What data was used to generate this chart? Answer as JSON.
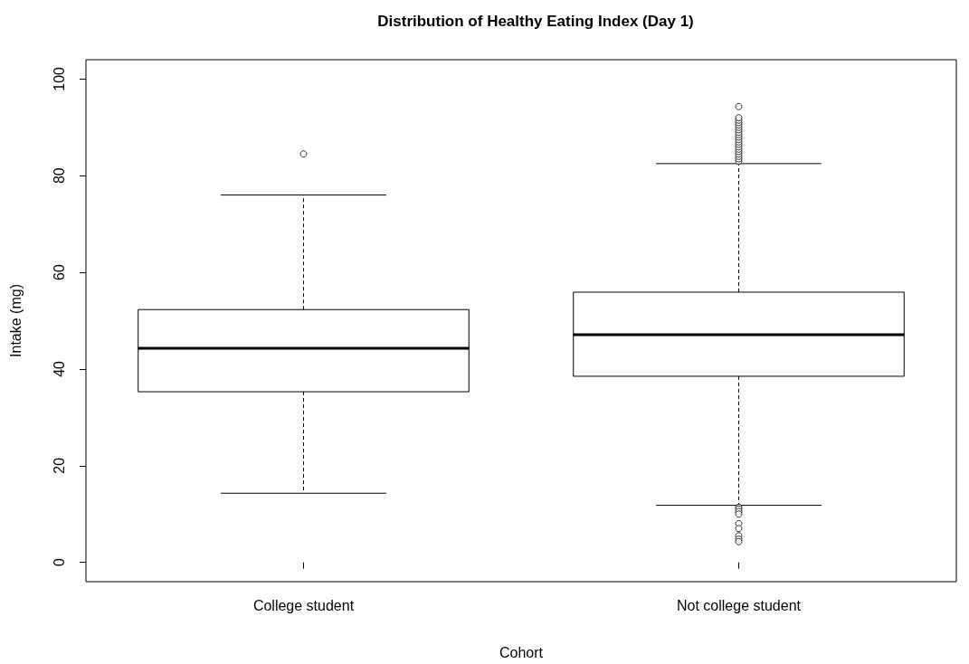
{
  "chart_data": {
    "type": "box",
    "title": "Distribution of Healthy Eating Index (Day 1)",
    "xlabel": "Cohort",
    "ylabel": "Intake (mg)",
    "categories": [
      "College student",
      "Not college student"
    ],
    "boxes": [
      {
        "low": 14.3,
        "q1": 35.3,
        "median": 44.3,
        "q3": 52.3,
        "high": 76.0,
        "outliers": [
          84.5
        ]
      },
      {
        "low": 11.8,
        "q1": 38.5,
        "median": 47.1,
        "q3": 55.9,
        "high": 82.5,
        "outliers": [
          83.0,
          83.5,
          84.0,
          84.5,
          85.0,
          85.5,
          86.0,
          86.5,
          87.0,
          87.5,
          88.0,
          88.5,
          89.0,
          89.5,
          90.0,
          90.5,
          91.0,
          91.5,
          92.0,
          94.3,
          11.4,
          11.0,
          10.5,
          10.0,
          8.0,
          7.0,
          5.5,
          4.8,
          4.3
        ]
      }
    ],
    "ylim": [
      -4,
      104
    ],
    "yticks": [
      0,
      20,
      40,
      60,
      80,
      100
    ],
    "color": "#000000",
    "line_style": "dashed",
    "grid": false,
    "legend": false
  }
}
